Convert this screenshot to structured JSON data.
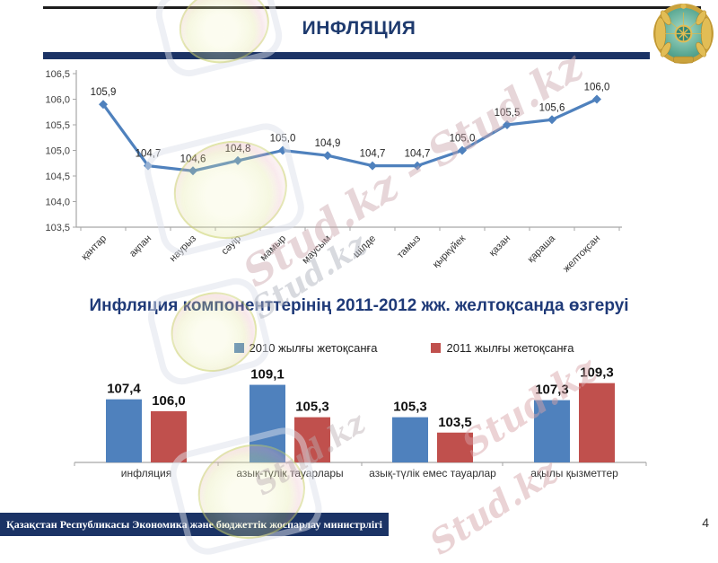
{
  "slide": {
    "title": "ИНФЛЯЦИЯ",
    "page_number": "4",
    "footer_text": "Қазақстан Республикасы Экономика және бюджеттік жоспарлау министрлігі"
  },
  "watermark": {
    "text": "Stud.kz",
    "pair_text": "Stud.kz - Stud.kz"
  },
  "emblem": {
    "name": "kazakhstan-coat-of-arms"
  },
  "colors": {
    "accent_navy": "#1b3365",
    "title_blue": "#1f3a78",
    "line_blue": "#4f81bd",
    "series_2010_blue": "#4f81bd",
    "series_2011_red": "#c0504d",
    "axis_gray": "#a6a6a6"
  },
  "chart_data": [
    {
      "type": "line",
      "title": "",
      "x": [
        "қантар",
        "ақпан",
        "наурыз",
        "сәуір",
        "мамыр",
        "маусым",
        "шілде",
        "тамыз",
        "қыркүйек",
        "қазан",
        "қараша",
        "желтоқсан"
      ],
      "series": [
        {
          "values": [
            105.9,
            104.7,
            104.6,
            104.8,
            105.0,
            104.9,
            104.7,
            104.7,
            105.0,
            105.5,
            105.6,
            106.0
          ],
          "point_labels": [
            "105,9",
            "104,7",
            "104,6",
            "104,8",
            "105,0",
            "104,9",
            "104,7",
            "104,7",
            "105,0",
            "105,5",
            "105,6",
            "106,0"
          ]
        }
      ],
      "ylim": [
        103.5,
        106.5
      ],
      "ytick_step": 0.5,
      "ytick_labels": [
        "106,5",
        "106,0",
        "105,5",
        "105,0",
        "104,5",
        "104,0",
        "103,5"
      ],
      "grid": false,
      "marker": "diamond",
      "legend_position": "none"
    },
    {
      "type": "bar",
      "title": "Инфляция компоненттерінің 2011-2012 жж. желтоқсанда өзгеруі",
      "categories": [
        "инфляция",
        "азық-түлік тауарлары",
        "азық-түлік емес тауарлар",
        "ақылы қызметтер"
      ],
      "series": [
        {
          "name": "2010 жылғы жетоқсанға",
          "color": "#4f81bd",
          "values": [
            107.4,
            109.1,
            105.3,
            107.3
          ],
          "value_labels": [
            "107,4",
            "109,1",
            "105,3",
            "107,3"
          ]
        },
        {
          "name": "2011 жылғы жетоқсанға",
          "color": "#c0504d",
          "values": [
            106.0,
            105.3,
            103.5,
            109.3
          ],
          "value_labels": [
            "106,0",
            "105,3",
            "103,5",
            "109,3"
          ]
        }
      ],
      "baseline": 100,
      "grid": false,
      "legend_position": "top"
    }
  ]
}
